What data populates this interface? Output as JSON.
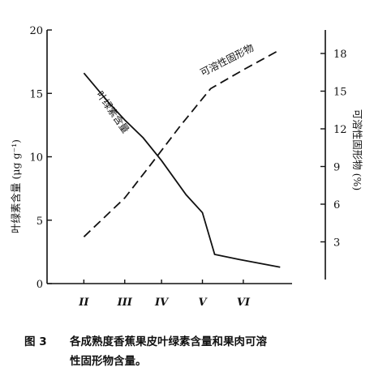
{
  "chart_data": {
    "type": "line",
    "categories": [
      "II",
      "III",
      "IV",
      "V",
      "VI"
    ],
    "y_left": {
      "label": "叶绿素含量 (μg g⁻¹)",
      "ticks": [
        0,
        5,
        10,
        15,
        20
      ],
      "range": [
        0,
        20
      ]
    },
    "y_right": {
      "label": "可溶性固形物 (%)",
      "ticks": [
        3,
        6,
        9,
        12,
        15,
        18
      ],
      "range": [
        0,
        20
      ]
    },
    "series": [
      {
        "name": "叶绿素含量",
        "axis": "left",
        "style": "solid",
        "x": [
          1.8,
          3.0,
          3.8,
          4.7,
          5.6,
          6.8,
          7.6,
          8.2,
          9.4,
          11.4
        ],
        "values": [
          16.6,
          14.3,
          12.9,
          11.5,
          9.7,
          7.0,
          5.6,
          2.3,
          1.9,
          1.3
        ]
      },
      {
        "name": "可溶性固形物",
        "axis": "right",
        "style": "dashed",
        "x": [
          1.8,
          3.8,
          5.0,
          6.5,
          8.0,
          9.6,
          11.4
        ],
        "values": [
          3.4,
          6.5,
          9.0,
          12.2,
          15.2,
          16.7,
          18.3
        ]
      }
    ],
    "category_x": [
      1.8,
      3.8,
      5.6,
      7.6,
      9.6
    ]
  },
  "caption": {
    "number": "图 3",
    "line1": "各成熟度香蕉果皮叶绿素含量和果肉可溶",
    "line2": "性固形物含量。"
  }
}
